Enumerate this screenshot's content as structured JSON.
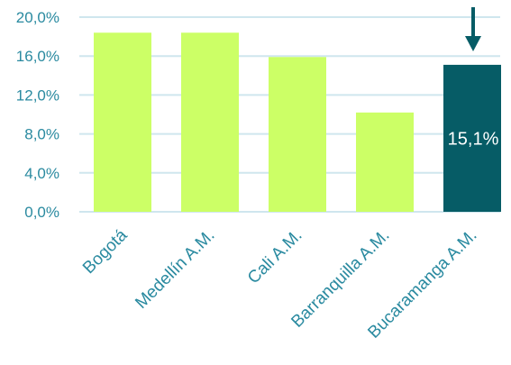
{
  "chart_data": {
    "type": "bar",
    "title": "",
    "xlabel": "",
    "ylabel": "",
    "categories": [
      "Bogotá",
      "Medellín A.M.",
      "Cali A.M.",
      "Barranquilla A.M.",
      "Bucaramanga A.M."
    ],
    "values": [
      18.4,
      18.4,
      15.9,
      10.2,
      15.1
    ],
    "ylim": [
      0,
      20
    ],
    "yticks": [
      "0,0%",
      "4,0%",
      "8,0%",
      "12,0%",
      "16,0%",
      "20,0%"
    ],
    "grid": true,
    "legend": "none",
    "highlight": {
      "index": 4,
      "label": "15,1%",
      "marker": "arrow-down-icon"
    },
    "colors": {
      "bar": "#ccff66",
      "highlight_bar": "#065c66",
      "highlight_text": "#ffffff",
      "axis_text": "#2a8aa0",
      "grid": "#cfe6ee",
      "arrow": "#065c66"
    }
  }
}
